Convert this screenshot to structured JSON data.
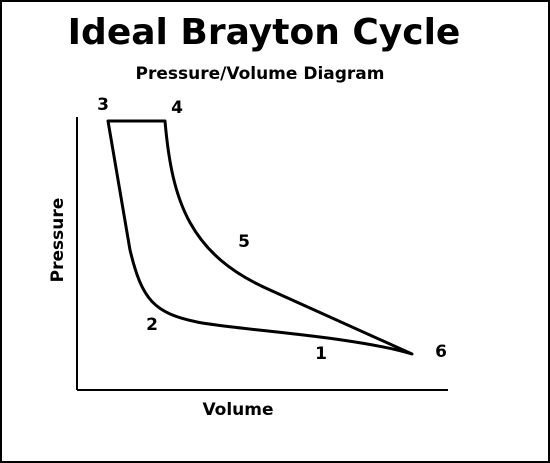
{
  "header": {
    "title": "Ideal Brayton Cycle",
    "subtitle": "Pressure/Volume Diagram"
  },
  "axes": {
    "y_label": "Pressure",
    "x_label": "Volume"
  },
  "points": [
    "1",
    "2",
    "3",
    "4",
    "5",
    "6"
  ]
}
